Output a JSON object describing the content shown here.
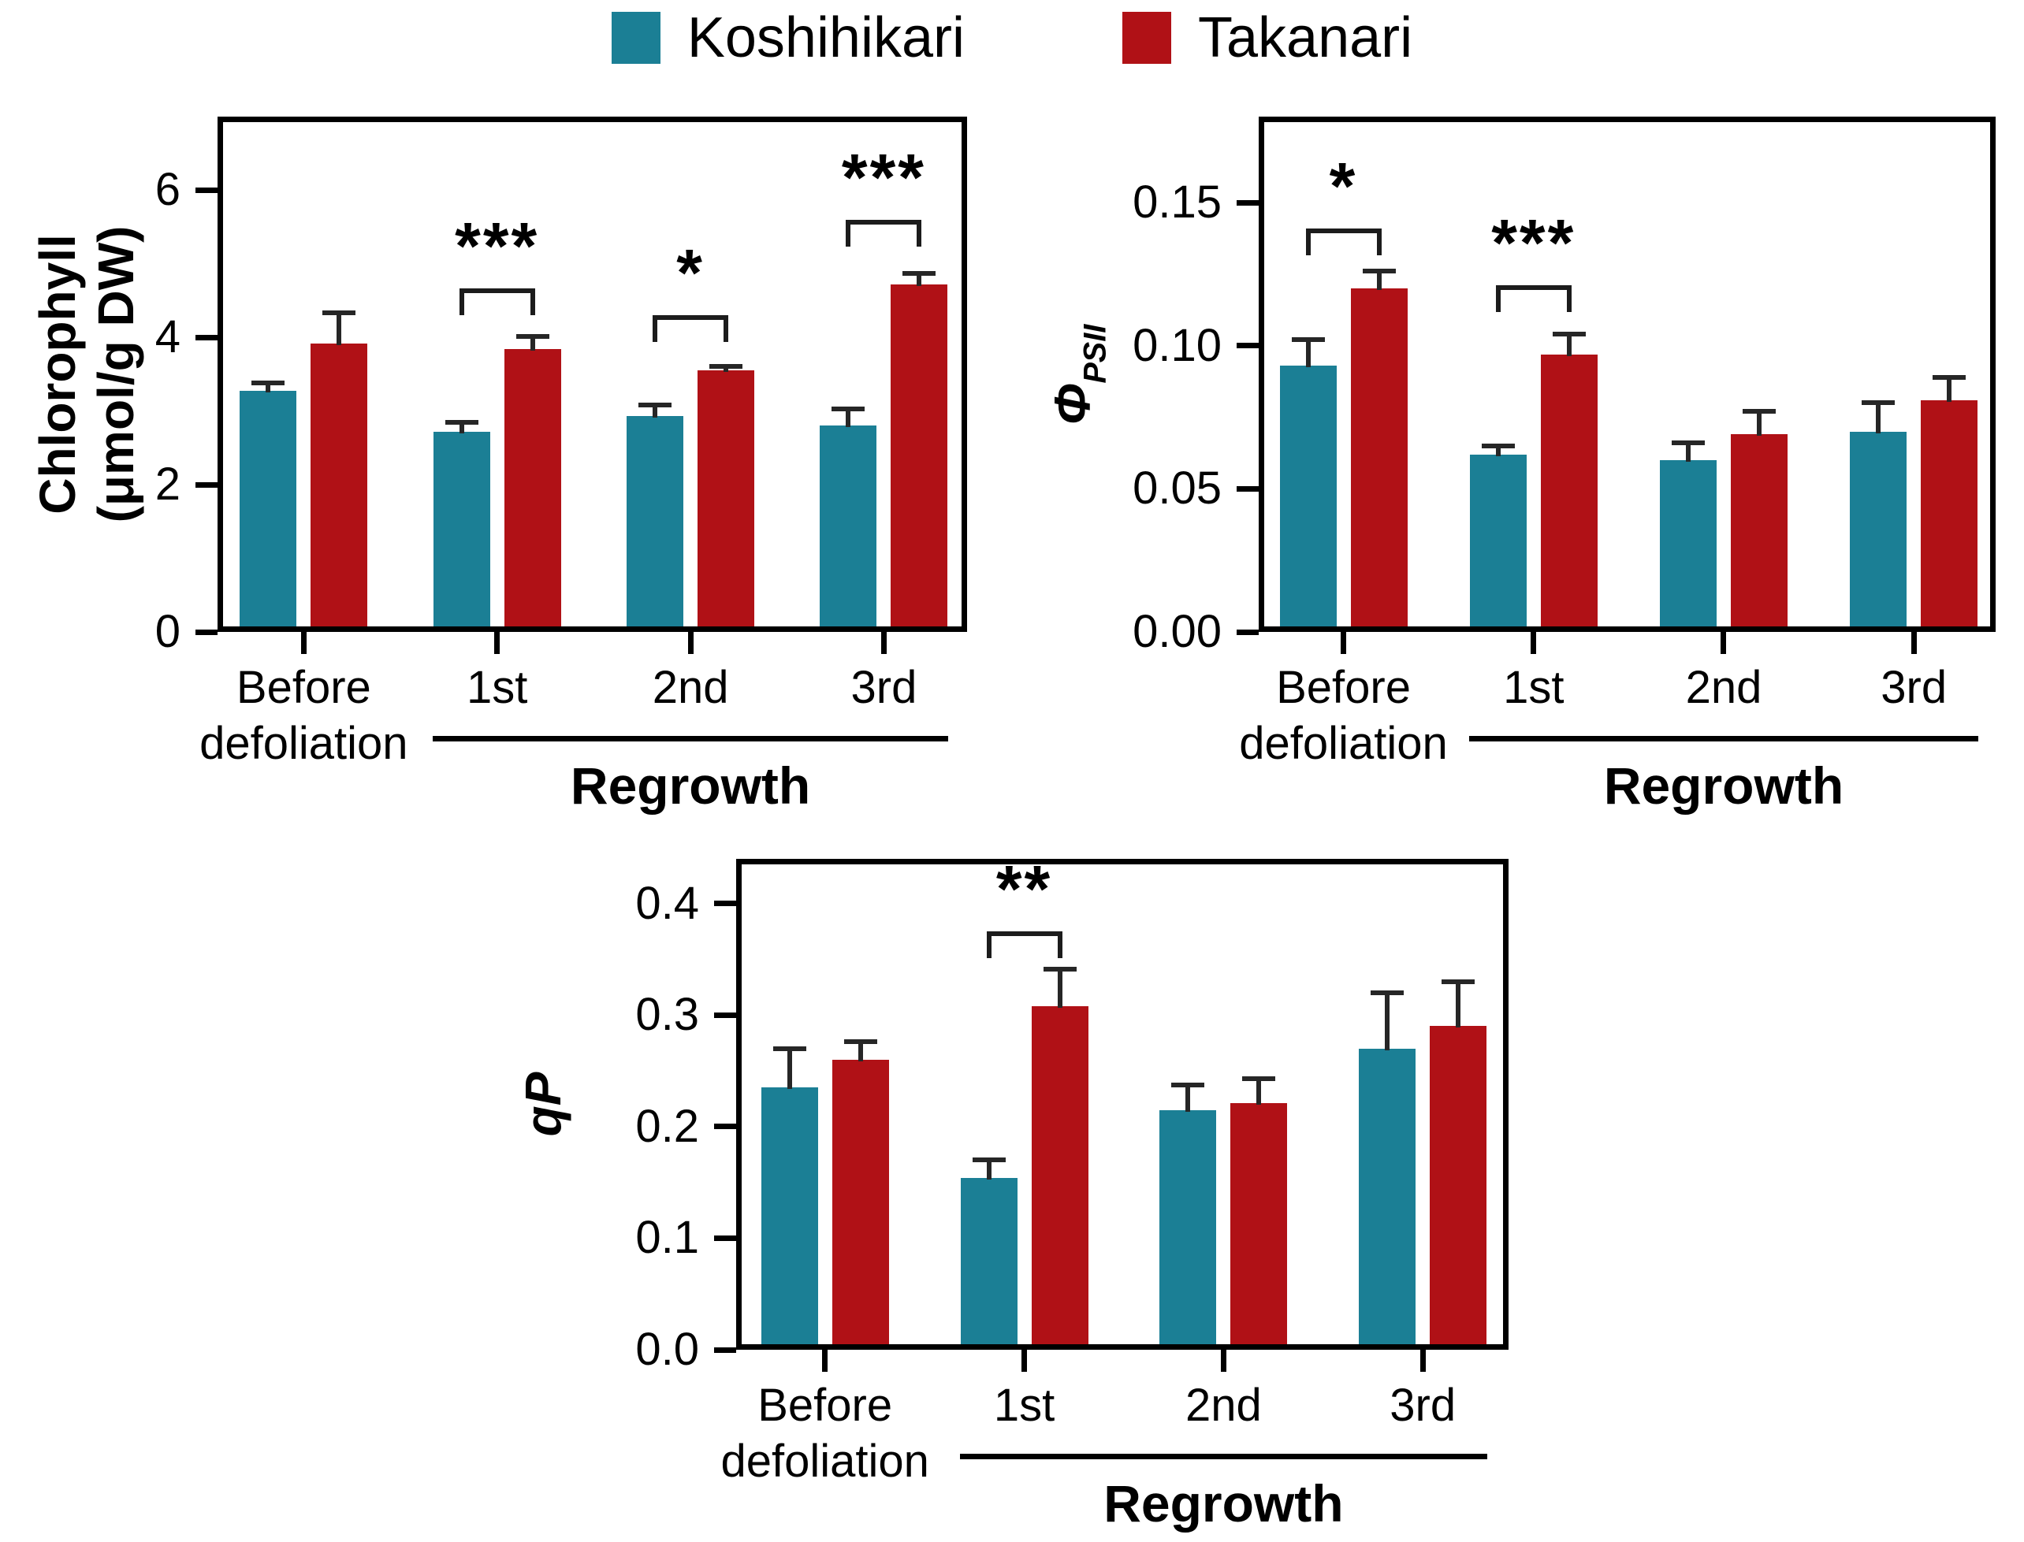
{
  "legend": {
    "items": [
      {
        "label": "Koshihikari",
        "color": "#1b7f95"
      },
      {
        "label": "Takanari",
        "color": "#b01116"
      }
    ]
  },
  "colors": {
    "koshihikari": "#1b7f95",
    "takanari": "#b01116",
    "axis": "#000000",
    "error_bar": "#262626"
  },
  "categories": [
    [
      "Before",
      "defoliation"
    ],
    [
      "1st"
    ],
    [
      "2nd"
    ],
    [
      "3rd"
    ]
  ],
  "group_axis_label": "Regrowth",
  "group_axis_span": [
    1,
    3
  ],
  "chart_data": [
    {
      "id": "chlorophyll",
      "type": "bar",
      "ylabel": {
        "lines": [
          "Chlorophyll",
          "(μmol/g DW)"
        ],
        "italic": false,
        "sub": null
      },
      "ylim": [
        0,
        7
      ],
      "yticks": [
        {
          "v": 0,
          "label": "0"
        },
        {
          "v": 2,
          "label": "2"
        },
        {
          "v": 4,
          "label": "4"
        },
        {
          "v": 6,
          "label": "6"
        }
      ],
      "categories": [
        "Before defoliation",
        "1st",
        "2nd",
        "3rd"
      ],
      "grid": false,
      "legend_position": "top",
      "series": [
        {
          "name": "Koshihikari",
          "values": [
            3.28,
            2.72,
            2.93,
            2.8
          ],
          "errors": [
            0.1,
            0.13,
            0.15,
            0.23
          ]
        },
        {
          "name": "Takanari",
          "values": [
            3.92,
            3.84,
            3.55,
            4.72
          ],
          "errors": [
            0.42,
            0.17,
            0.06,
            0.15
          ]
        }
      ],
      "significance": [
        {
          "between": 1,
          "label": "***",
          "bracket_y": 4.67
        },
        {
          "between": 2,
          "label": "*",
          "bracket_y": 4.3
        },
        {
          "between": 3,
          "label": "***",
          "bracket_y": 5.6
        }
      ]
    },
    {
      "id": "phi-psii",
      "type": "bar",
      "ylabel": {
        "lines": [
          "Φ"
        ],
        "italic": true,
        "sub": "PSII"
      },
      "ylim": [
        0,
        0.18
      ],
      "yticks": [
        {
          "v": 0,
          "label": "0.00"
        },
        {
          "v": 0.05,
          "label": "0.05"
        },
        {
          "v": 0.1,
          "label": "0.10"
        },
        {
          "v": 0.15,
          "label": "0.15"
        }
      ],
      "categories": [
        "Before defoliation",
        "1st",
        "2nd",
        "3rd"
      ],
      "grid": false,
      "legend_position": "top",
      "series": [
        {
          "name": "Koshihikari",
          "values": [
            0.093,
            0.062,
            0.06,
            0.07
          ],
          "errors": [
            0.009,
            0.003,
            0.006,
            0.01
          ]
        },
        {
          "name": "Takanari",
          "values": [
            0.12,
            0.097,
            0.069,
            0.081
          ],
          "errors": [
            0.006,
            0.007,
            0.008,
            0.008
          ]
        }
      ],
      "significance": [
        {
          "between": 0,
          "label": "*",
          "bracket_y": 0.141
        },
        {
          "between": 1,
          "label": "***",
          "bracket_y": 0.121
        }
      ]
    },
    {
      "id": "qp",
      "type": "bar",
      "ylabel": {
        "lines": [
          "qP"
        ],
        "italic": true,
        "sub": null
      },
      "ylim": [
        0,
        0.44
      ],
      "yticks": [
        {
          "v": 0,
          "label": "0.0"
        },
        {
          "v": 0.1,
          "label": "0.1"
        },
        {
          "v": 0.2,
          "label": "0.2"
        },
        {
          "v": 0.3,
          "label": "0.3"
        },
        {
          "v": 0.4,
          "label": "0.4"
        }
      ],
      "categories": [
        "Before defoliation",
        "1st",
        "2nd",
        "3rd"
      ],
      "grid": false,
      "legend_position": "top",
      "series": [
        {
          "name": "Koshihikari",
          "values": [
            0.235,
            0.154,
            0.215,
            0.27
          ],
          "errors": [
            0.035,
            0.016,
            0.022,
            0.05
          ]
        },
        {
          "name": "Takanari",
          "values": [
            0.26,
            0.308,
            0.221,
            0.29
          ],
          "errors": [
            0.016,
            0.033,
            0.022,
            0.04
          ]
        }
      ],
      "significance": [
        {
          "between": 1,
          "label": "**",
          "bracket_y": 0.375
        }
      ]
    }
  ]
}
